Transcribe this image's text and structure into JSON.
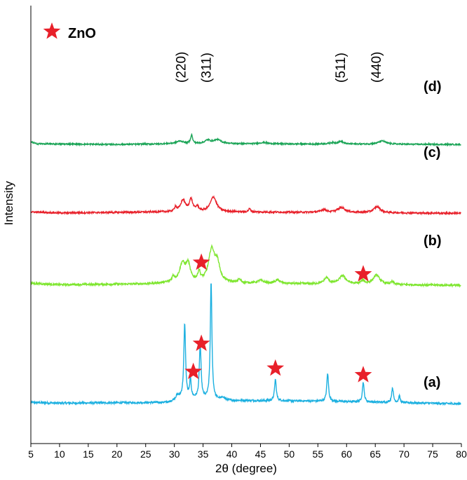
{
  "chart_data": {
    "type": "line",
    "title": "",
    "xlabel": "2θ (degree)",
    "ylabel": "Intensity",
    "xlim": [
      5,
      80
    ],
    "xticks": [
      5,
      10,
      15,
      20,
      25,
      30,
      35,
      40,
      45,
      50,
      55,
      60,
      65,
      70,
      75,
      80
    ],
    "xtick_labels": [
      "5",
      "10",
      "15",
      "20",
      "25",
      "30",
      "35",
      "40",
      "45",
      "50",
      "55",
      "60",
      "65",
      "70",
      "75",
      "80"
    ],
    "grid": false,
    "legend": {
      "symbol": "star",
      "label": "ZnO",
      "color": "#e8202a",
      "placement": "top-left"
    },
    "hkl_labels": [
      {
        "label": "(220)",
        "x": 31.2
      },
      {
        "label": "(311)",
        "x": 35.6
      },
      {
        "label": "(511)",
        "x": 59.0
      },
      {
        "label": "(440)",
        "x": 65.2
      }
    ],
    "series": [
      {
        "name": "(a)",
        "color": "#1cb0e0",
        "baseline": 0.0,
        "noise": 0.006,
        "base": [
          [
            5,
            0.012
          ],
          [
            10,
            0.01
          ],
          [
            29,
            0.012
          ],
          [
            31,
            0.025
          ],
          [
            40,
            0.018
          ],
          [
            55,
            0.016
          ],
          [
            80,
            0.008
          ]
        ],
        "peaks": [
          [
            31.8,
            0.225,
            0.18
          ],
          [
            32.8,
            0.06,
            0.15
          ],
          [
            34.5,
            0.165,
            0.18
          ],
          [
            36.4,
            0.355,
            0.17
          ],
          [
            47.6,
            0.065,
            0.18
          ],
          [
            56.7,
            0.085,
            0.18
          ],
          [
            62.9,
            0.06,
            0.18
          ],
          [
            68.0,
            0.045,
            0.18
          ],
          [
            69.2,
            0.02,
            0.15
          ],
          [
            30.5,
            0.01,
            0.3
          ],
          [
            38.5,
            0.008,
            0.3
          ]
        ],
        "stars_at": [
          [
            33.3,
            0.105
          ],
          [
            34.7,
            0.19
          ],
          [
            47.6,
            0.115
          ],
          [
            62.9,
            0.095
          ]
        ]
      },
      {
        "name": "(b)",
        "color": "#7ee62f",
        "baseline": 0.36,
        "noise": 0.006,
        "base": [
          [
            5,
            0.012
          ],
          [
            10,
            0.008
          ],
          [
            25,
            0.01
          ],
          [
            30,
            0.014
          ],
          [
            45,
            0.012
          ],
          [
            80,
            0.006
          ]
        ],
        "peaks": [
          [
            29.8,
            0.015,
            0.25
          ],
          [
            31.4,
            0.055,
            0.6
          ],
          [
            32.4,
            0.05,
            0.45
          ],
          [
            34.3,
            0.028,
            0.25
          ],
          [
            36.5,
            0.098,
            0.65
          ],
          [
            37.5,
            0.05,
            0.5
          ],
          [
            41.3,
            0.01,
            0.3
          ],
          [
            45.0,
            0.008,
            0.6
          ],
          [
            48.0,
            0.01,
            0.5
          ],
          [
            56.5,
            0.018,
            0.5
          ],
          [
            59.3,
            0.025,
            0.7
          ],
          [
            62.8,
            0.01,
            0.4
          ],
          [
            65.2,
            0.028,
            0.7
          ],
          [
            68.0,
            0.008,
            0.3
          ]
        ],
        "stars_at": [
          [
            34.7,
            0.075
          ],
          [
            62.9,
            0.04
          ]
        ]
      },
      {
        "name": "(c)",
        "color": "#e8202a",
        "baseline": 0.58,
        "noise": 0.005,
        "base": [
          [
            5,
            0.008
          ],
          [
            10,
            0.005
          ],
          [
            28,
            0.008
          ],
          [
            40,
            0.008
          ],
          [
            80,
            0.004
          ]
        ],
        "peaks": [
          [
            30.2,
            0.014,
            0.2
          ],
          [
            31.5,
            0.035,
            0.5
          ],
          [
            32.9,
            0.036,
            0.35
          ],
          [
            34.0,
            0.014,
            0.3
          ],
          [
            36.8,
            0.045,
            0.65
          ],
          [
            43.1,
            0.01,
            0.2
          ],
          [
            56.0,
            0.008,
            0.6
          ],
          [
            59.1,
            0.015,
            0.8
          ],
          [
            65.3,
            0.018,
            0.7
          ]
        ],
        "stars_at": []
      },
      {
        "name": "(d)",
        "color": "#1aa456",
        "baseline": 0.79,
        "noise": 0.004,
        "base": [
          [
            5,
            0.01
          ],
          [
            6,
            0.004
          ],
          [
            20,
            0.002
          ],
          [
            30,
            0.004
          ],
          [
            40,
            0.004
          ],
          [
            80,
            0.002
          ]
        ],
        "peaks": [
          [
            31.0,
            0.008,
            0.8
          ],
          [
            33.0,
            0.026,
            0.2
          ],
          [
            35.8,
            0.01,
            0.6
          ],
          [
            37.5,
            0.012,
            0.8
          ],
          [
            45.5,
            0.004,
            0.8
          ],
          [
            57.5,
            0.004,
            0.6
          ],
          [
            59.0,
            0.008,
            0.5
          ],
          [
            66.2,
            0.01,
            0.8
          ]
        ],
        "stars_at": []
      }
    ]
  }
}
